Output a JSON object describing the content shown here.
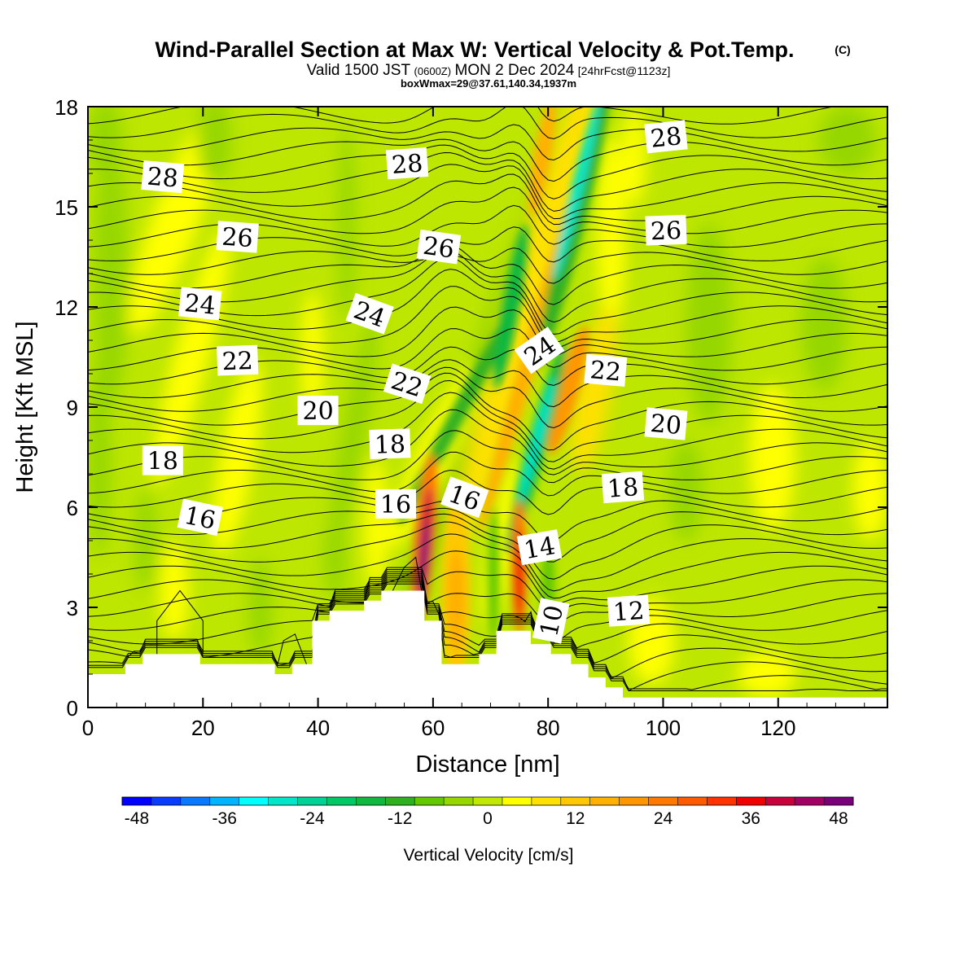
{
  "header": {
    "title": "Wind-Parallel Section at Max W: Vertical Velocity & Pot.Temp.",
    "title_mark": "(C)",
    "valid_prefix": "Valid 1500 JST",
    "valid_utc": "(0600Z)",
    "valid_date": "MON 2 Dec 2024",
    "forecast": "[24hrFcst@1123z]",
    "box_info": "boxWmax=29@37.61,140.34,1937m"
  },
  "chart_data": {
    "type": "heatmap",
    "title": "Wind-Parallel Section at Max W: Vertical Velocity & Pot.Temp.",
    "xlabel": "Distance [nm]",
    "ylabel": "Height [Kft MSL]",
    "xlim": [
      0,
      139
    ],
    "ylim": [
      0,
      18
    ],
    "x_ticks": [
      "0",
      "20",
      "40",
      "60",
      "80",
      "100",
      "120"
    ],
    "y_ticks": [
      "0",
      "3",
      "6",
      "9",
      "12",
      "15",
      "18"
    ],
    "grid": false,
    "colorbar": {
      "label": "Vertical Velocity [cm/s]",
      "ticks": [
        "-48",
        "-36",
        "-24",
        "-12",
        "0",
        "12",
        "24",
        "36",
        "48"
      ],
      "min": -50,
      "max": 50,
      "colors": [
        "#0000ff",
        "#0a3cff",
        "#0a78ff",
        "#00b4ff",
        "#00ffff",
        "#00e6c8",
        "#00d296",
        "#00c864",
        "#10b840",
        "#30b020",
        "#64c800",
        "#96d700",
        "#c0e800",
        "#ffff00",
        "#ffe100",
        "#ffc800",
        "#ffb000",
        "#ff9600",
        "#ff7800",
        "#ff5a00",
        "#ff3200",
        "#f00000",
        "#c8003c",
        "#a00064",
        "#780078"
      ]
    },
    "features": [
      {
        "kind": "updraft",
        "x": 58.5,
        "y": 4.5,
        "value": 46
      },
      {
        "kind": "updraft",
        "x": 75,
        "y": 4,
        "value": 36
      },
      {
        "kind": "updraft",
        "x": 80,
        "y": 11,
        "value": 16
      },
      {
        "kind": "updraft",
        "x": 79,
        "y": 16,
        "value": 14
      },
      {
        "kind": "downdraft",
        "x": 78,
        "y": 8,
        "value": -30
      },
      {
        "kind": "downdraft",
        "x": 85,
        "y": 15,
        "value": -30
      },
      {
        "kind": "downdraft",
        "x": 66,
        "y": 8,
        "value": -14
      },
      {
        "kind": "downdraft",
        "x": 73,
        "y": 12,
        "value": -16
      }
    ],
    "potential_temperature_labels": [
      {
        "text": "28",
        "x": 13,
        "y": 15.9
      },
      {
        "text": "28",
        "x": 55.5,
        "y": 16.3
      },
      {
        "text": "28",
        "x": 100.5,
        "y": 17.1
      },
      {
        "text": "26",
        "x": 26,
        "y": 14.1
      },
      {
        "text": "26",
        "x": 61,
        "y": 13.8
      },
      {
        "text": "26",
        "x": 100.5,
        "y": 14.3
      },
      {
        "text": "24",
        "x": 19.5,
        "y": 12.1
      },
      {
        "text": "24",
        "x": 49,
        "y": 11.8
      },
      {
        "text": "24",
        "x": 78.5,
        "y": 10.7
      },
      {
        "text": "22",
        "x": 26,
        "y": 10.4
      },
      {
        "text": "22",
        "x": 55.5,
        "y": 9.7
      },
      {
        "text": "22",
        "x": 90,
        "y": 10.1
      },
      {
        "text": "20",
        "x": 40,
        "y": 8.9
      },
      {
        "text": "20",
        "x": 100.5,
        "y": 8.5
      },
      {
        "text": "18",
        "x": 13,
        "y": 7.4
      },
      {
        "text": "18",
        "x": 52.5,
        "y": 7.9
      },
      {
        "text": "18",
        "x": 93,
        "y": 6.6
      },
      {
        "text": "16",
        "x": 19.5,
        "y": 5.7
      },
      {
        "text": "16",
        "x": 53.5,
        "y": 6.1
      },
      {
        "text": "16",
        "x": 65.5,
        "y": 6.3
      },
      {
        "text": "14",
        "x": 78.5,
        "y": 4.8
      },
      {
        "text": "12",
        "x": 94,
        "y": 2.9
      },
      {
        "text": "10",
        "x": 80.5,
        "y": 2.6
      }
    ],
    "terrain": [
      [
        0,
        1
      ],
      [
        6.5,
        1
      ],
      [
        6.5,
        1.3
      ],
      [
        9.5,
        1.3
      ],
      [
        9.5,
        1.6
      ],
      [
        19.5,
        1.6
      ],
      [
        19.5,
        1.3
      ],
      [
        32.5,
        1.3
      ],
      [
        32.5,
        1
      ],
      [
        35.5,
        1
      ],
      [
        35.5,
        1.3
      ],
      [
        39,
        1.3
      ],
      [
        39,
        2.6
      ],
      [
        42,
        2.6
      ],
      [
        42,
        2.9
      ],
      [
        48,
        2.9
      ],
      [
        48,
        3.2
      ],
      [
        51,
        3.2
      ],
      [
        51,
        3.5
      ],
      [
        58.5,
        3.5
      ],
      [
        58.5,
        2.6
      ],
      [
        61.5,
        2.6
      ],
      [
        61.5,
        1.3
      ],
      [
        68,
        1.3
      ],
      [
        68,
        1.6
      ],
      [
        71,
        1.6
      ],
      [
        71,
        2.3
      ],
      [
        77,
        2.3
      ],
      [
        77,
        1.9
      ],
      [
        80.5,
        1.9
      ],
      [
        80.5,
        1.6
      ],
      [
        84,
        1.6
      ],
      [
        84,
        1.3
      ],
      [
        87,
        1.3
      ],
      [
        87,
        0.9
      ],
      [
        90,
        0.9
      ],
      [
        90,
        0.6
      ],
      [
        93,
        0.6
      ],
      [
        93,
        0.3
      ],
      [
        139,
        0.3
      ]
    ]
  }
}
